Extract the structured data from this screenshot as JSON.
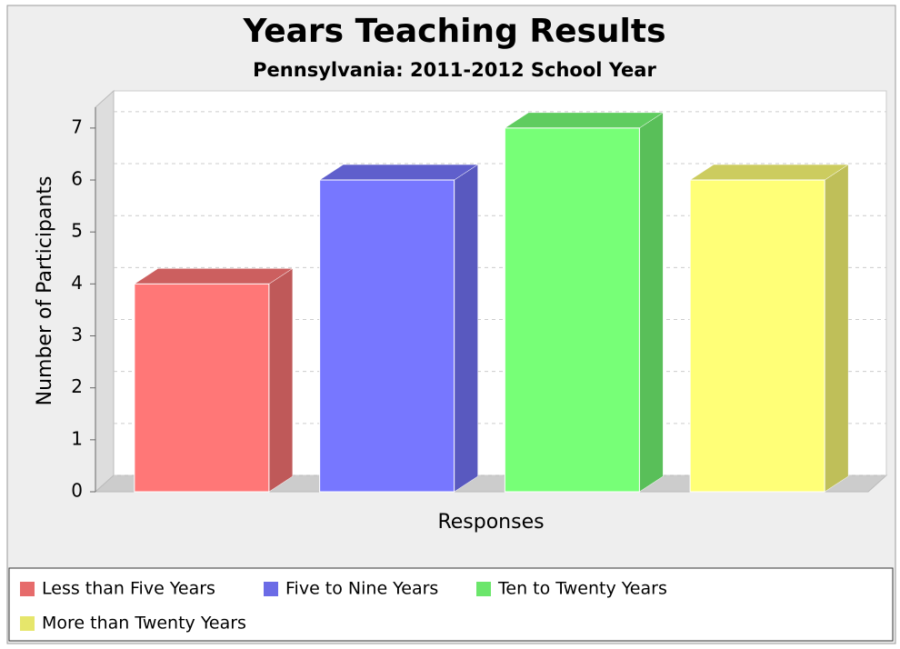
{
  "chart_data": {
    "type": "bar3d",
    "title": "Years Teaching Results",
    "subtitle": "Pennsylvania: 2011-2012 School Year",
    "y_label": "Number of Participants",
    "x_label": "Responses",
    "categories": [
      null
    ],
    "series": [
      {
        "name": "Less than Five Years",
        "color": "#ff7777",
        "values": [
          4
        ]
      },
      {
        "name": "Five to Nine Years",
        "color": "#7777ff",
        "values": [
          6
        ]
      },
      {
        "name": "Ten to Twenty Years",
        "color": "#77ff77",
        "values": [
          7
        ]
      },
      {
        "name": "More than Twenty Years",
        "color": "#ffff77",
        "values": [
          6
        ]
      }
    ],
    "ylim": [
      0,
      7.4
    ],
    "yticks": [
      0,
      1,
      2,
      3,
      4,
      5,
      6,
      7
    ],
    "grid": true,
    "legend": "bottom"
  }
}
